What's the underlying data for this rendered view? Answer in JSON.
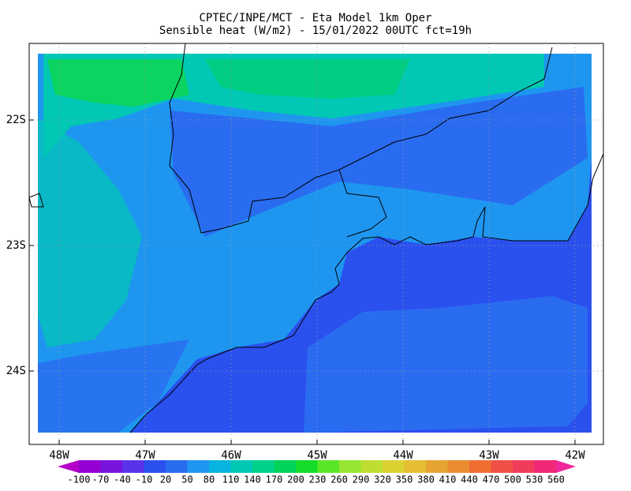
{
  "header": {
    "title_line1": "CPTEC/INPE/MCT -  Eta Model 1km Oper",
    "title_line2": "Sensible heat (W/m2) - 15/01/2022 00UTC fct=19h"
  },
  "map": {
    "lat_labels": [
      "22S",
      "23S",
      "24S"
    ],
    "lon_labels": [
      "48W",
      "47W",
      "46W",
      "45W",
      "44W",
      "43W",
      "42W"
    ]
  },
  "colorbar": {
    "labels": [
      -100,
      -70,
      -40,
      -10,
      20,
      50,
      80,
      110,
      140,
      170,
      200,
      230,
      260,
      290,
      320,
      350,
      380,
      410,
      440,
      470,
      500,
      530,
      560
    ],
    "colors": [
      "#b400c8",
      "#9600d2",
      "#7814dc",
      "#5a32ea",
      "#2a50ee",
      "#2a6cf0",
      "#1e96f0",
      "#0ab4e0",
      "#00c8b4",
      "#00d28c",
      "#00d25a",
      "#14dc28",
      "#5ae628",
      "#96e632",
      "#bede32",
      "#dcd232",
      "#e6be32",
      "#e6a532",
      "#eb8c32",
      "#f06e32",
      "#f05046",
      "#f03c5a",
      "#f02878",
      "#f0289b"
    ]
  }
}
